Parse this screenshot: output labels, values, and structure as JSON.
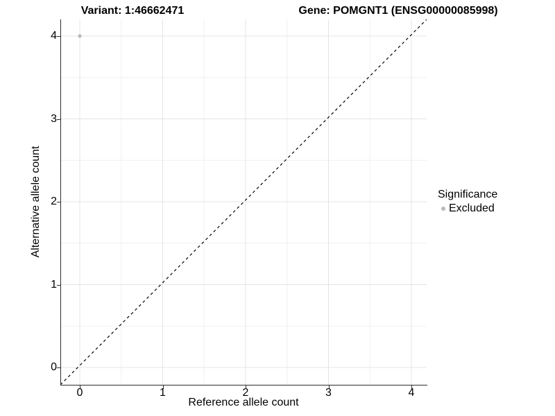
{
  "titles": {
    "variant": "Variant: 1:46662471",
    "gene": "Gene: POMGNT1 (ENSG00000085998)"
  },
  "chart_data": {
    "type": "scatter",
    "title": "Variant: 1:46662471    Gene: POMGNT1 (ENSG00000085998)",
    "xlabel": "Reference allele count",
    "ylabel": "Alternative allele count",
    "x_ticks": [
      "0",
      "1",
      "2",
      "3",
      "4"
    ],
    "y_ticks": [
      "0",
      "1",
      "2",
      "3",
      "4"
    ],
    "x_tick_values": [
      0,
      1,
      2,
      3,
      4
    ],
    "y_tick_values": [
      0,
      1,
      2,
      3,
      4
    ],
    "minor_tick_values": [
      0.5,
      1.5,
      2.5,
      3.5
    ],
    "xlim": [
      -0.23,
      4.19
    ],
    "ylim": [
      -0.21,
      4.2
    ],
    "grid": "on",
    "reference_line": {
      "kind": "identity y=x",
      "style": "dashed",
      "color": "#000000"
    },
    "series": [
      {
        "name": "Excluded",
        "color": "#b9b9b9",
        "points": [
          {
            "x": 0,
            "y": 4
          }
        ]
      }
    ],
    "legend": {
      "position": "right",
      "title": "Significance",
      "items": [
        {
          "label": "Excluded",
          "color": "#b9b9b9"
        }
      ]
    },
    "colors": {
      "grid_major": "#e4e4e4",
      "grid_minor": "#f0f0f0",
      "axis_line": "#2b2b2b",
      "text": "#000000",
      "point": "#b9b9b9"
    }
  }
}
